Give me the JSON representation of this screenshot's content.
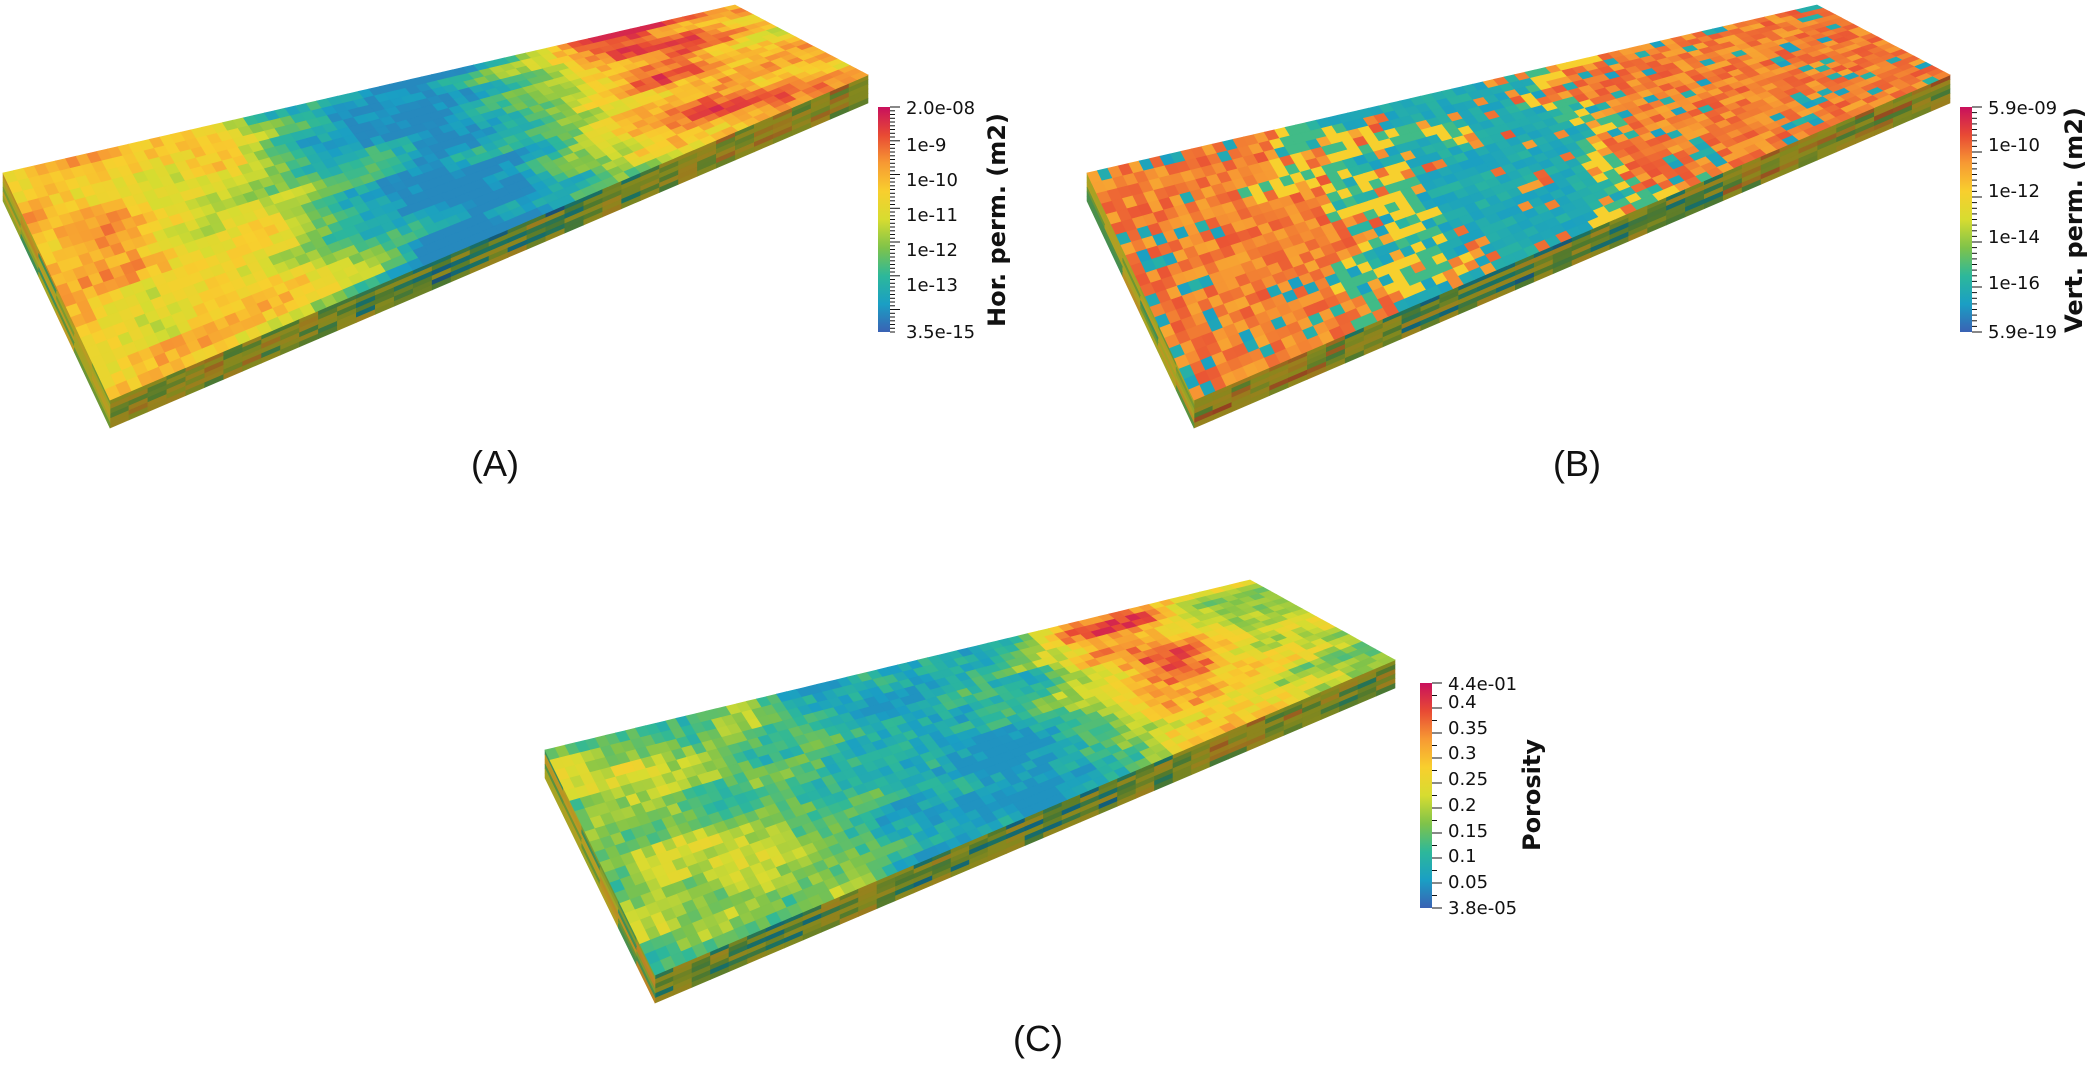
{
  "panels": [
    {
      "label": "(A)",
      "colorbar": {
        "title": "Hor. perm. (m2)",
        "scale": "log",
        "max_label": "2.0e-08",
        "min_label": "3.5e-15",
        "ticks": [
          "1e-9",
          "1e-10",
          "1e-11",
          "1e-12",
          "1e-13"
        ]
      }
    },
    {
      "label": "(B)",
      "colorbar": {
        "title": "Vert. perm. (m2)",
        "scale": "log",
        "max_label": "5.9e-09",
        "min_label": "5.9e-19",
        "ticks": [
          "1e-10",
          "1e-12",
          "1e-14",
          "1e-16"
        ]
      }
    },
    {
      "label": "(C)",
      "colorbar": {
        "title": "Porosity",
        "scale": "linear",
        "max_label": "4.4e-01",
        "min_label": "3.8e-05",
        "ticks": [
          "0.4",
          "0.35",
          "0.3",
          "0.25",
          "0.2",
          "0.15",
          "0.1",
          "0.05"
        ]
      }
    }
  ],
  "colors": {
    "colormap": [
      "#3a62b4",
      "#1a9fc4",
      "#2db89a",
      "#7fc34a",
      "#d7dc30",
      "#f8cf2e",
      "#f79a33",
      "#e84a34",
      "#c8105d"
    ]
  }
}
